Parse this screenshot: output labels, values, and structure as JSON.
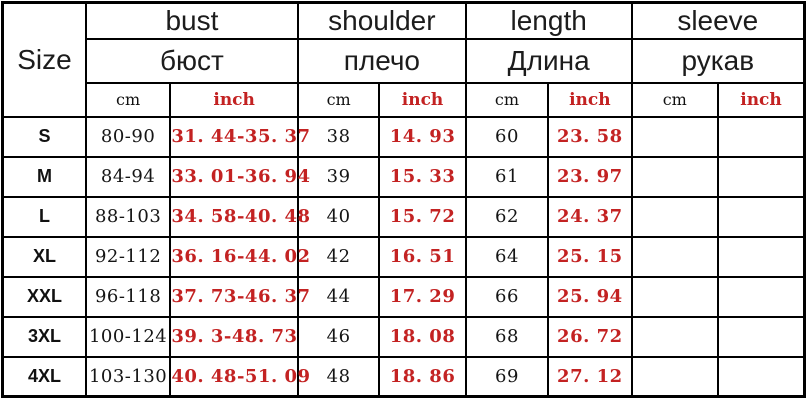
{
  "colors": {
    "inch_red": "#c32222",
    "text_black": "#111111",
    "border_black": "#000000",
    "background": "#ffffff"
  },
  "table": {
    "size_header": "Size",
    "unit_cm": "cm",
    "unit_inch": "inch",
    "sections": [
      {
        "en": "bust",
        "ru": "бюст"
      },
      {
        "en": "shoulder",
        "ru": "плечо"
      },
      {
        "en": "length",
        "ru": "Длина"
      },
      {
        "en": "sleeve",
        "ru": "рукав"
      }
    ],
    "rows": [
      {
        "size": "S",
        "bust_cm": "80-90",
        "bust_inch": "31. 44-35. 37",
        "shoulder_cm": "38",
        "shoulder_inch": "14. 93",
        "length_cm": "60",
        "length_inch": "23. 58",
        "sleeve_cm": "",
        "sleeve_inch": ""
      },
      {
        "size": "M",
        "bust_cm": "84-94",
        "bust_inch": "33. 01-36. 94",
        "shoulder_cm": "39",
        "shoulder_inch": "15. 33",
        "length_cm": "61",
        "length_inch": "23. 97",
        "sleeve_cm": "",
        "sleeve_inch": ""
      },
      {
        "size": "L",
        "bust_cm": "88-103",
        "bust_inch": "34. 58-40. 48",
        "shoulder_cm": "40",
        "shoulder_inch": "15. 72",
        "length_cm": "62",
        "length_inch": "24. 37",
        "sleeve_cm": "",
        "sleeve_inch": ""
      },
      {
        "size": "XL",
        "bust_cm": "92-112",
        "bust_inch": "36. 16-44. 02",
        "shoulder_cm": "42",
        "shoulder_inch": "16. 51",
        "length_cm": "64",
        "length_inch": "25. 15",
        "sleeve_cm": "",
        "sleeve_inch": ""
      },
      {
        "size": "XXL",
        "bust_cm": "96-118",
        "bust_inch": "37. 73-46. 37",
        "shoulder_cm": "44",
        "shoulder_inch": "17. 29",
        "length_cm": "66",
        "length_inch": "25. 94",
        "sleeve_cm": "",
        "sleeve_inch": ""
      },
      {
        "size": "3XL",
        "bust_cm": "100-124",
        "bust_inch": "39. 3-48. 73",
        "shoulder_cm": "46",
        "shoulder_inch": "18. 08",
        "length_cm": "68",
        "length_inch": "26. 72",
        "sleeve_cm": "",
        "sleeve_inch": ""
      },
      {
        "size": "4XL",
        "bust_cm": "103-130",
        "bust_inch": "40. 48-51. 09",
        "shoulder_cm": "48",
        "shoulder_inch": "18. 86",
        "length_cm": "69",
        "length_inch": "27. 12",
        "sleeve_cm": "",
        "sleeve_inch": ""
      }
    ]
  }
}
